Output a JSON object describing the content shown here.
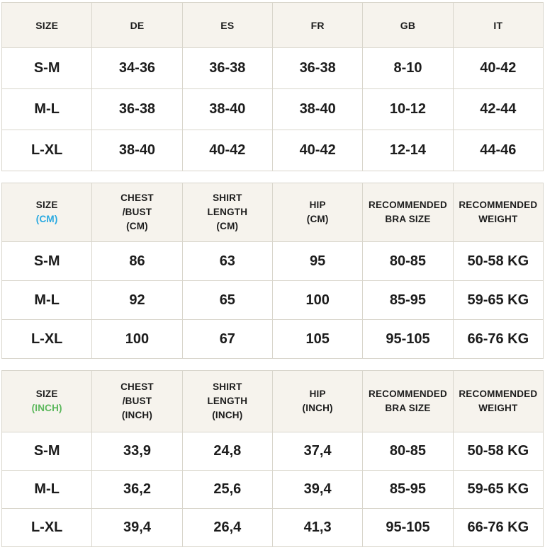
{
  "colors": {
    "header_background": "#f6f3ed",
    "cell_background": "#ffffff",
    "border": "#d9d6cc",
    "text": "#1c1c1c",
    "cm_accent": "#29a9e1",
    "inch_accent": "#5cb85c"
  },
  "table_international": {
    "headers": [
      "SIZE",
      "DE",
      "ES",
      "FR",
      "GB",
      "IT"
    ],
    "rows": [
      [
        "S-M",
        "34-36",
        "36-38",
        "36-38",
        "8-10",
        "40-42"
      ],
      [
        "M-L",
        "36-38",
        "38-40",
        "38-40",
        "10-12",
        "42-44"
      ],
      [
        "L-XL",
        "38-40",
        "40-42",
        "40-42",
        "12-14",
        "44-46"
      ]
    ]
  },
  "table_cm": {
    "headers": [
      [
        "SIZE",
        "(CM)"
      ],
      [
        "CHEST",
        "/BUST",
        "(CM)"
      ],
      [
        "SHIRT",
        "LENGTH",
        "(CM)"
      ],
      [
        "HIP",
        "(CM)"
      ],
      [
        "RECOMMENDED",
        "BRA SIZE"
      ],
      [
        "RECOMMENDED",
        "WEIGHT"
      ]
    ],
    "rows": [
      [
        "S-M",
        "86",
        "63",
        "95",
        "80-85",
        "50-58 KG"
      ],
      [
        "M-L",
        "92",
        "65",
        "100",
        "85-95",
        "59-65 KG"
      ],
      [
        "L-XL",
        "100",
        "67",
        "105",
        "95-105",
        "66-76 KG"
      ]
    ]
  },
  "table_inch": {
    "headers": [
      [
        "SIZE",
        "(INCH)"
      ],
      [
        "CHEST",
        "/BUST",
        "(INCH)"
      ],
      [
        "SHIRT",
        "LENGTH",
        "(INCH)"
      ],
      [
        "HIP",
        "(INCH)"
      ],
      [
        "RECOMMENDED",
        "BRA SIZE"
      ],
      [
        "RECOMMENDED",
        "WEIGHT"
      ]
    ],
    "rows": [
      [
        "S-M",
        "33,9",
        "24,8",
        "37,4",
        "80-85",
        "50-58 KG"
      ],
      [
        "M-L",
        "36,2",
        "25,6",
        "39,4",
        "85-95",
        "59-65 KG"
      ],
      [
        "L-XL",
        "39,4",
        "26,4",
        "41,3",
        "95-105",
        "66-76 KG"
      ]
    ]
  }
}
